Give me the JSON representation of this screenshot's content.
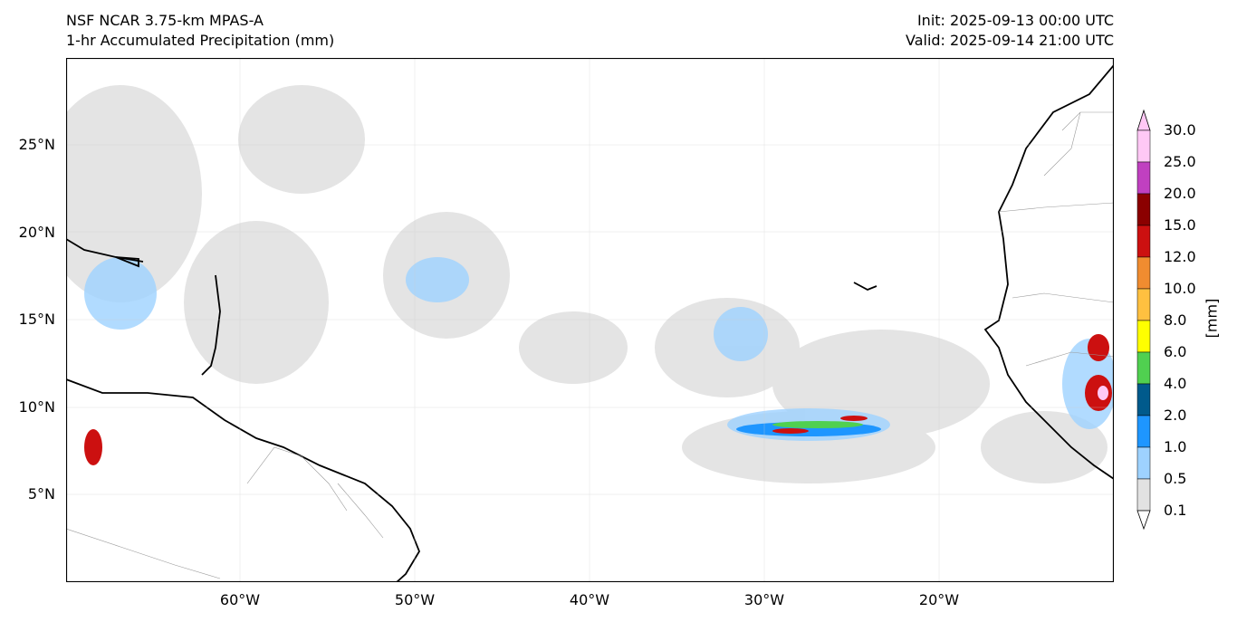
{
  "title": {
    "left_line1": "NSF NCAR 3.75-km MPAS-A",
    "left_line2": "1-hr Accumulated Precipitation (mm)",
    "right_line1": "Init: 2025-09-13 00:00 UTC",
    "right_line2": "Valid: 2025-09-14 21:00 UTC"
  },
  "axes": {
    "lat_labels": [
      "25°N",
      "20°N",
      "15°N",
      "10°N",
      "5°N"
    ],
    "lon_labels": [
      "60°W",
      "50°W",
      "40°W",
      "30°W",
      "20°W"
    ]
  },
  "colorbar": {
    "unit": "[mm]",
    "levels": [
      "30.0",
      "25.0",
      "20.0",
      "15.0",
      "12.0",
      "10.0",
      "8.0",
      "6.0",
      "4.0",
      "2.0",
      "1.0",
      "0.5",
      "0.1"
    ],
    "colors": [
      "#ffc8f5",
      "#c040c0",
      "#8b0000",
      "#cc1010",
      "#f08c30",
      "#ffc040",
      "#ffff00",
      "#50d050",
      "#005a8c",
      "#1e96ff",
      "#9ed2ff",
      "#e2e2e2"
    ]
  },
  "chart_data": {
    "type": "heatmap",
    "lat_range": [
      0,
      30
    ],
    "lon_range": [
      -70,
      -10
    ],
    "lat_ticks": [
      25,
      20,
      15,
      10,
      5
    ],
    "lon_ticks": [
      -60,
      -50,
      -40,
      -30,
      -20
    ],
    "grid": true,
    "legend": "colorbar-right"
  }
}
